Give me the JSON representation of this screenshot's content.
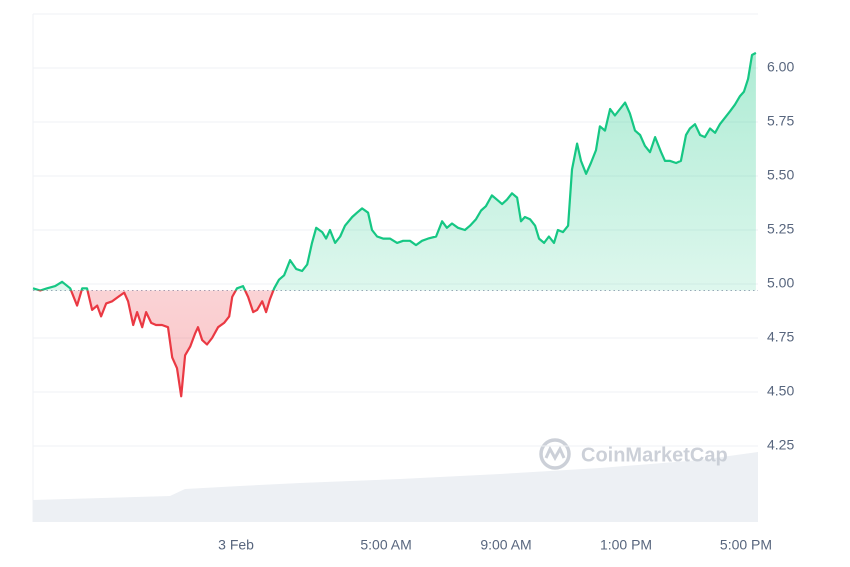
{
  "chart_data": {
    "type": "line",
    "watermark": "CoinMarketCap",
    "color_up": "#16c784",
    "color_down": "#ea3943",
    "baseline": 4.97,
    "xlim": [
      -6.77,
      17.4
    ],
    "xticks": [
      {
        "value": 0,
        "label": "3 Feb"
      },
      {
        "value": 5,
        "label": "5:00 AM"
      },
      {
        "value": 9,
        "label": "9:00 AM"
      },
      {
        "value": 13,
        "label": "1:00 PM"
      },
      {
        "value": 17,
        "label": "5:00 PM"
      }
    ],
    "ylim": [
      3.898,
      6.25
    ],
    "yticks": [
      {
        "value": 4.25,
        "label": "4.25"
      },
      {
        "value": 4.5,
        "label": "4.50"
      },
      {
        "value": 4.75,
        "label": "4.75"
      },
      {
        "value": 5,
        "label": "5.00"
      },
      {
        "value": 5.25,
        "label": "5.25"
      },
      {
        "value": 5.5,
        "label": "5.50"
      },
      {
        "value": 5.75,
        "label": "5.75"
      },
      {
        "value": 6,
        "label": "6.00"
      }
    ],
    "grid": true,
    "x": [
      -6.77,
      -6.53,
      -6.3,
      -6.03,
      -5.8,
      -5.53,
      -5.3,
      -5.13,
      -4.97,
      -4.8,
      -4.63,
      -4.5,
      -4.33,
      -4.13,
      -3.93,
      -3.73,
      -3.6,
      -3.43,
      -3.3,
      -3.13,
      -3.0,
      -2.83,
      -2.67,
      -2.47,
      -2.27,
      -2.13,
      -1.97,
      -1.83,
      -1.7,
      -1.53,
      -1.37,
      -1.27,
      -1.13,
      -0.97,
      -0.8,
      -0.6,
      -0.4,
      -0.23,
      -0.13,
      0.03,
      0.23,
      0.4,
      0.57,
      0.7,
      0.87,
      1.0,
      1.13,
      1.27,
      1.43,
      1.6,
      1.8,
      2.0,
      2.2,
      2.37,
      2.53,
      2.67,
      2.87,
      3.0,
      3.13,
      3.3,
      3.47,
      3.63,
      3.87,
      4.03,
      4.2,
      4.4,
      4.53,
      4.7,
      4.9,
      5.13,
      5.37,
      5.57,
      5.8,
      6.0,
      6.2,
      6.4,
      6.67,
      6.87,
      7.03,
      7.2,
      7.4,
      7.63,
      7.8,
      8.0,
      8.17,
      8.33,
      8.53,
      8.7,
      8.87,
      9.03,
      9.2,
      9.37,
      9.5,
      9.63,
      9.8,
      9.97,
      10.1,
      10.27,
      10.43,
      10.6,
      10.73,
      10.9,
      11.07,
      11.2,
      11.37,
      11.5,
      11.67,
      11.83,
      12.0,
      12.13,
      12.3,
      12.47,
      12.63,
      12.8,
      12.97,
      13.13,
      13.3,
      13.47,
      13.63,
      13.8,
      13.97,
      14.17,
      14.3,
      14.47,
      14.67,
      14.83,
      15.0,
      15.13,
      15.3,
      15.47,
      15.63,
      15.8,
      15.97,
      16.13,
      16.3,
      16.47,
      16.63,
      16.8,
      16.93,
      17.07,
      17.2,
      17.33
    ],
    "values": [
      4.98,
      4.97,
      4.98,
      4.99,
      5.01,
      4.98,
      4.9,
      4.98,
      4.98,
      4.88,
      4.9,
      4.85,
      4.91,
      4.92,
      4.94,
      4.96,
      4.92,
      4.81,
      4.87,
      4.8,
      4.87,
      4.82,
      4.81,
      4.81,
      4.8,
      4.66,
      4.61,
      4.48,
      4.67,
      4.71,
      4.77,
      4.8,
      4.74,
      4.72,
      4.75,
      4.8,
      4.82,
      4.85,
      4.94,
      4.98,
      4.99,
      4.94,
      4.87,
      4.88,
      4.92,
      4.87,
      4.93,
      4.98,
      5.02,
      5.04,
      5.11,
      5.07,
      5.06,
      5.09,
      5.19,
      5.26,
      5.24,
      5.21,
      5.25,
      5.19,
      5.22,
      5.27,
      5.31,
      5.33,
      5.35,
      5.33,
      5.25,
      5.22,
      5.21,
      5.21,
      5.19,
      5.2,
      5.2,
      5.18,
      5.2,
      5.21,
      5.22,
      5.29,
      5.26,
      5.28,
      5.26,
      5.25,
      5.27,
      5.3,
      5.34,
      5.36,
      5.41,
      5.39,
      5.37,
      5.39,
      5.42,
      5.4,
      5.29,
      5.31,
      5.3,
      5.27,
      5.21,
      5.19,
      5.22,
      5.19,
      5.25,
      5.24,
      5.27,
      5.53,
      5.65,
      5.57,
      5.51,
      5.56,
      5.62,
      5.73,
      5.71,
      5.81,
      5.78,
      5.81,
      5.84,
      5.79,
      5.71,
      5.69,
      5.64,
      5.61,
      5.68,
      5.61,
      5.57,
      5.57,
      5.56,
      5.57,
      5.69,
      5.72,
      5.74,
      5.69,
      5.68,
      5.72,
      5.7,
      5.74,
      5.77,
      5.8,
      5.83,
      5.87,
      5.89,
      5.95,
      6.06,
      6.07
    ]
  }
}
